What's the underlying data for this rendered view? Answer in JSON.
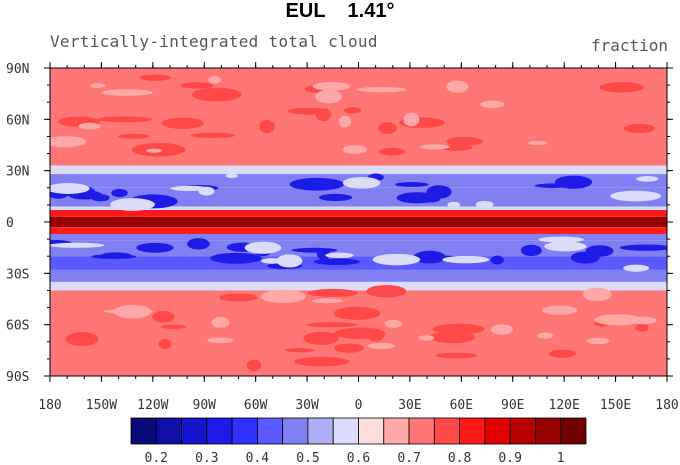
{
  "title": "EUL",
  "resolution": "1.41°",
  "subtitle": "Vertically-integrated total cloud",
  "units": "fraction",
  "chart_data": {
    "type": "heatmap",
    "title": "EUL 1.41°",
    "subtitle": "Vertically-integrated total cloud",
    "units": "fraction",
    "projection": "cylindrical-equidistant",
    "xlim": [
      -180,
      180
    ],
    "ylim": [
      -90,
      90
    ],
    "x_ticks": [
      {
        "value": -180,
        "label": "180"
      },
      {
        "value": -150,
        "label": "150W"
      },
      {
        "value": -120,
        "label": "120W"
      },
      {
        "value": -90,
        "label": "90W"
      },
      {
        "value": -60,
        "label": "60W"
      },
      {
        "value": -30,
        "label": "30W"
      },
      {
        "value": 0,
        "label": "0"
      },
      {
        "value": 30,
        "label": "30E"
      },
      {
        "value": 60,
        "label": "60E"
      },
      {
        "value": 90,
        "label": "90E"
      },
      {
        "value": 120,
        "label": "120E"
      },
      {
        "value": 150,
        "label": "150E"
      },
      {
        "value": 180,
        "label": "180"
      }
    ],
    "y_ticks": [
      {
        "value": 90,
        "label": "90N"
      },
      {
        "value": 60,
        "label": "60N"
      },
      {
        "value": 30,
        "label": "30N"
      },
      {
        "value": 0,
        "label": "0"
      },
      {
        "value": -30,
        "label": "30S"
      },
      {
        "value": -60,
        "label": "60S"
      },
      {
        "value": -90,
        "label": "90S"
      }
    ],
    "colorbar": {
      "levels": [
        0.2,
        0.3,
        0.4,
        0.5,
        0.6,
        0.7,
        0.8,
        0.9,
        1
      ],
      "tick_labels": [
        "0.2",
        "0.3",
        "0.4",
        "0.5",
        "0.6",
        "0.7",
        "0.8",
        "0.9",
        "1"
      ],
      "colors": [
        "#0a0a7a",
        "#0f0fa8",
        "#1414cc",
        "#1c1ce6",
        "#3030ff",
        "#5a5aff",
        "#8080f2",
        "#aeaef5",
        "#dcdcfa",
        "#ffdcdc",
        "#ffa8a8",
        "#ff7676",
        "#ff4848",
        "#ff1a1a",
        "#e00000",
        "#b80000",
        "#960000",
        "#730000"
      ]
    },
    "zonal_bands": [
      {
        "lat": [
          90,
          33
        ],
        "value": 0.72
      },
      {
        "lat": [
          33,
          28
        ],
        "value": 0.6
      },
      {
        "lat": [
          28,
          20
        ],
        "value": 0.5
      },
      {
        "lat": [
          20,
          9
        ],
        "value": 0.45
      },
      {
        "lat": [
          9,
          7
        ],
        "value": 0.55
      },
      {
        "lat": [
          7,
          3
        ],
        "value": 0.8
      },
      {
        "lat": [
          3,
          -3
        ],
        "value": 0.95
      },
      {
        "lat": [
          -3,
          -7
        ],
        "value": 0.8
      },
      {
        "lat": [
          -7,
          -11
        ],
        "value": 0.5
      },
      {
        "lat": [
          -11,
          -20
        ],
        "value": 0.45
      },
      {
        "lat": [
          -20,
          -28
        ],
        "value": 0.42
      },
      {
        "lat": [
          -28,
          -35
        ],
        "value": 0.5
      },
      {
        "lat": [
          -35,
          -40
        ],
        "value": 0.6
      },
      {
        "lat": [
          -40,
          -90
        ],
        "value": 0.72
      }
    ]
  }
}
